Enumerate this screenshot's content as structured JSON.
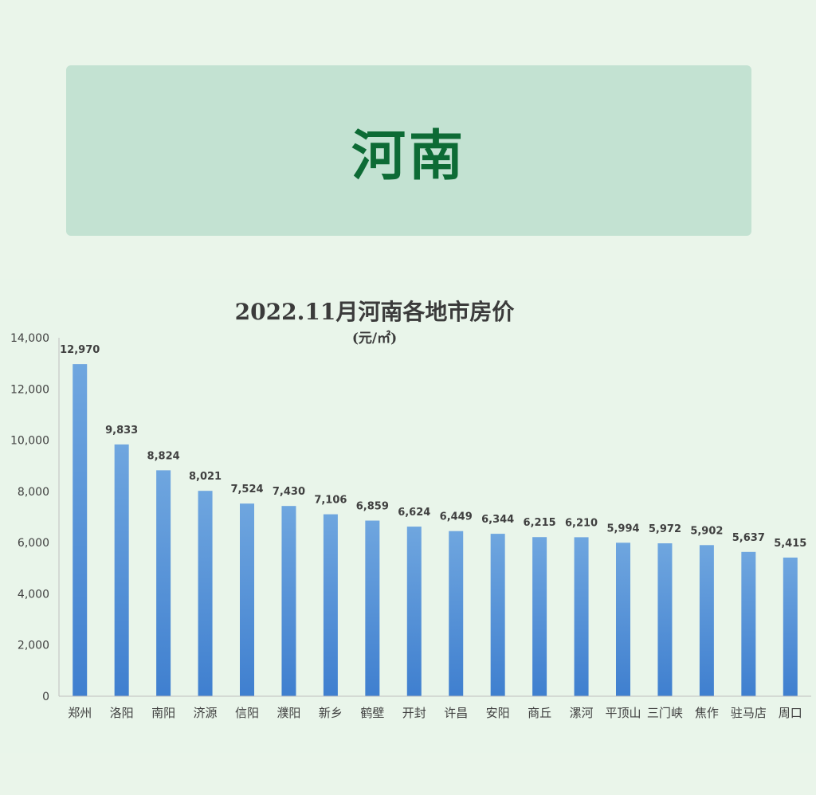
{
  "banner": {
    "title": "河南"
  },
  "chart_data": {
    "type": "bar",
    "title": "2022.11月河南各地市房价",
    "subtitle": "(元/㎡)",
    "categories": [
      "郑州",
      "洛阳",
      "南阳",
      "济源",
      "信阳",
      "濮阳",
      "新乡",
      "鹤壁",
      "开封",
      "许昌",
      "安阳",
      "商丘",
      "漯河",
      "平顶山",
      "三门峡",
      "焦作",
      "驻马店",
      "周口"
    ],
    "values": [
      12970,
      9833,
      8824,
      8021,
      7524,
      7430,
      7106,
      6859,
      6624,
      6449,
      6344,
      6215,
      6210,
      5994,
      5972,
      5902,
      5637,
      5415
    ],
    "value_labels": [
      "12,970",
      "9,833",
      "8,824",
      "8,021",
      "7,524",
      "7,430",
      "7,106",
      "6,859",
      "6,624",
      "6,449",
      "6,344",
      "6,215",
      "6,210",
      "5,994",
      "5,972",
      "5,902",
      "5,637",
      "5,415"
    ],
    "ylim": [
      0,
      14000
    ],
    "yticks": [
      0,
      2000,
      4000,
      6000,
      8000,
      10000,
      12000,
      14000
    ],
    "ytick_labels": [
      "0",
      "2,000",
      "4,000",
      "6,000",
      "8,000",
      "10,000",
      "12,000",
      "14,000"
    ],
    "grid": false,
    "legend": "none",
    "bar_color_top": "#6fa6df",
    "bar_color_bottom": "#3f7fcf"
  }
}
